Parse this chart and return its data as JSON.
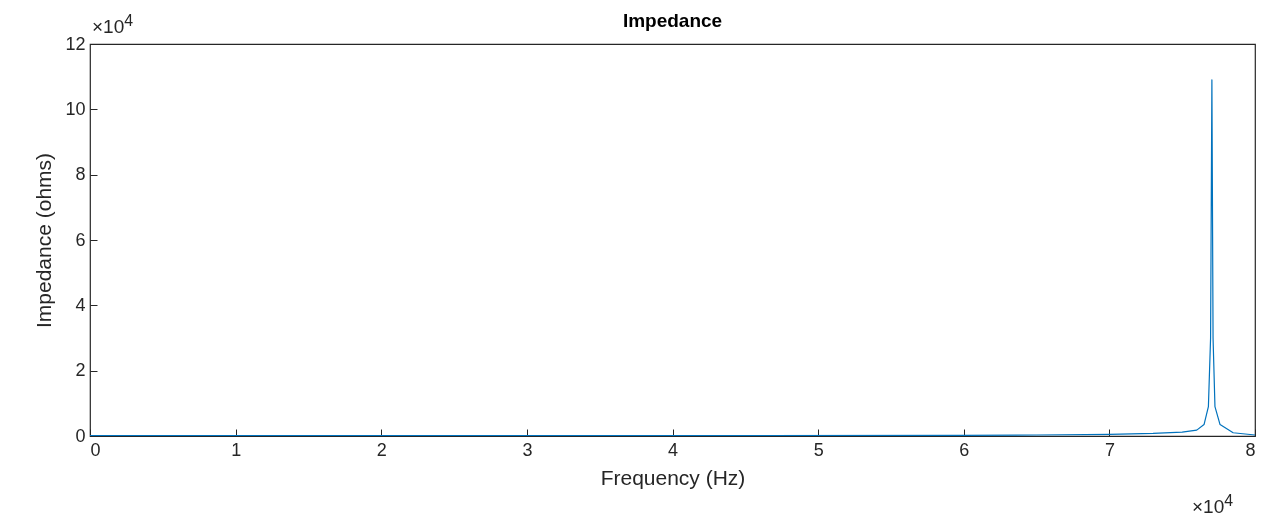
{
  "chart_data": {
    "type": "line",
    "title": "Impedance",
    "xlabel": "Frequency (Hz)",
    "ylabel": "Impedance (ohms)",
    "annotations": [
      "×10$^{4}$",
      "×10$^{4}$"
    ],
    "xlim": [
      0,
      8
    ],
    "xticks": [
      0,
      1,
      2,
      3,
      4,
      5,
      6,
      7,
      8
    ],
    "ylim": [
      0,
      12
    ],
    "yticks": [
      0,
      2,
      4,
      6,
      8,
      10,
      12
    ],
    "grid": false,
    "line_style": "solid",
    "marker": "none",
    "series": [
      {
        "color": "#0072bd",
        "x": [
          0,
          2,
          4,
          6,
          6.5,
          7,
          7.3,
          7.5,
          7.6,
          7.65,
          7.68,
          7.695,
          7.704,
          7.712,
          7.725,
          7.76,
          7.85,
          8
        ],
        "values": [
          0.01,
          0.01,
          0.01,
          0.02,
          0.03,
          0.05,
          0.08,
          0.12,
          0.18,
          0.35,
          0.9,
          3,
          10.9,
          3,
          0.9,
          0.35,
          0.1,
          0.03
        ]
      }
    ]
  }
}
